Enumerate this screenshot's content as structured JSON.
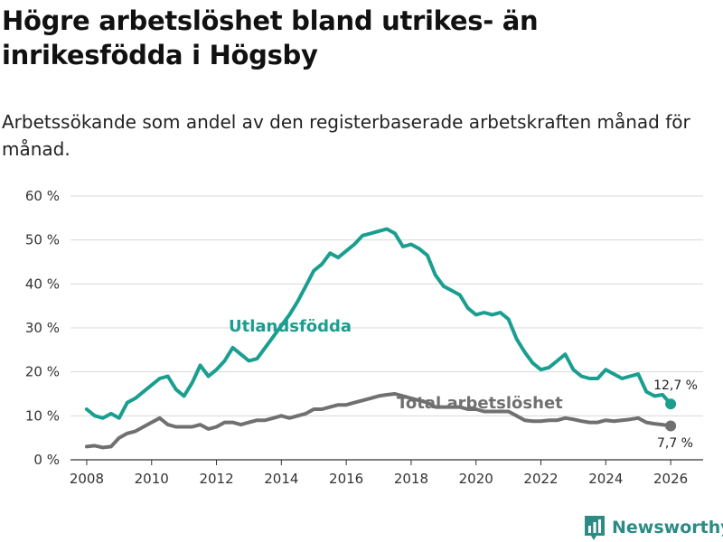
{
  "title": "Högre arbetslöshet bland utrikes- än inrikesfödda i Högsby",
  "subtitle": "Arbetssökande som andel av den registerbaserade arbetskraften månad för månad.",
  "brand": "Newsworthy",
  "colors": {
    "foreign": "#1a9e8f",
    "total": "#707070",
    "grid": "#d9d9d9",
    "axis": "#333333"
  },
  "chart_data": {
    "type": "line",
    "title": "Högre arbetslöshet bland utrikes- än inrikesfödda i Högsby",
    "subtitle": "Arbetssökande som andel av den registerbaserade arbetskraften månad för månad.",
    "xlabel": "",
    "ylabel": "",
    "xlim": [
      2007.5,
      2027.0
    ],
    "ylim": [
      0,
      60
    ],
    "grid": true,
    "xticks": [
      2008,
      2010,
      2012,
      2014,
      2016,
      2018,
      2020,
      2022,
      2024,
      2026
    ],
    "xtick_labels": [
      "2008",
      "2010",
      "2012",
      "2014",
      "2016",
      "2018",
      "2020",
      "2022",
      "2024",
      "2026"
    ],
    "yticks": [
      0,
      10,
      20,
      30,
      40,
      50,
      60
    ],
    "ytick_labels": [
      "0 %",
      "10 %",
      "20 %",
      "30 %",
      "40 %",
      "50 %",
      "60 %"
    ],
    "series": [
      {
        "name": "Utlandsfödda",
        "color": "#1a9e8f",
        "end_label": "12,7 %",
        "x": [
          2008.0,
          2008.25,
          2008.5,
          2008.75,
          2009.0,
          2009.25,
          2009.5,
          2009.75,
          2010.0,
          2010.25,
          2010.5,
          2010.75,
          2011.0,
          2011.25,
          2011.5,
          2011.75,
          2012.0,
          2012.25,
          2012.5,
          2012.75,
          2013.0,
          2013.25,
          2013.5,
          2013.75,
          2014.0,
          2014.25,
          2014.5,
          2014.75,
          2015.0,
          2015.25,
          2015.5,
          2015.75,
          2016.0,
          2016.25,
          2016.5,
          2016.75,
          2017.0,
          2017.25,
          2017.5,
          2017.75,
          2018.0,
          2018.25,
          2018.5,
          2018.75,
          2019.0,
          2019.25,
          2019.5,
          2019.75,
          2020.0,
          2020.25,
          2020.5,
          2020.75,
          2021.0,
          2021.25,
          2021.5,
          2021.75,
          2022.0,
          2022.25,
          2022.5,
          2022.75,
          2023.0,
          2023.25,
          2023.5,
          2023.75,
          2024.0,
          2024.25,
          2024.5,
          2024.75,
          2025.0,
          2025.25,
          2025.5,
          2025.75,
          2026.0
        ],
        "y": [
          11.5,
          10.0,
          9.5,
          10.5,
          9.5,
          13.0,
          14.0,
          15.5,
          17.0,
          18.5,
          19.0,
          16.0,
          14.5,
          17.5,
          21.5,
          19.0,
          20.5,
          22.5,
          25.5,
          24.0,
          22.5,
          23.0,
          25.5,
          28.0,
          30.5,
          33.0,
          36.0,
          39.5,
          43.0,
          44.5,
          47.0,
          46.0,
          47.5,
          49.0,
          51.0,
          51.5,
          52.0,
          52.5,
          51.5,
          48.5,
          49.0,
          48.0,
          46.5,
          42.0,
          39.5,
          38.5,
          37.5,
          34.5,
          33.0,
          33.5,
          33.0,
          33.5,
          32.0,
          27.5,
          24.5,
          22.0,
          20.5,
          21.0,
          22.5,
          24.0,
          20.5,
          19.0,
          18.5,
          18.5,
          20.5,
          19.5,
          18.5,
          19.0,
          19.5,
          15.5,
          14.5,
          14.8,
          12.7
        ]
      },
      {
        "name": "Total arbetslöshet",
        "color": "#707070",
        "end_label": "7,7 %",
        "x": [
          2008.0,
          2008.25,
          2008.5,
          2008.75,
          2009.0,
          2009.25,
          2009.5,
          2009.75,
          2010.0,
          2010.25,
          2010.5,
          2010.75,
          2011.0,
          2011.25,
          2011.5,
          2011.75,
          2012.0,
          2012.25,
          2012.5,
          2012.75,
          2013.0,
          2013.25,
          2013.5,
          2013.75,
          2014.0,
          2014.25,
          2014.5,
          2014.75,
          2015.0,
          2015.25,
          2015.5,
          2015.75,
          2016.0,
          2016.25,
          2016.5,
          2016.75,
          2017.0,
          2017.25,
          2017.5,
          2017.75,
          2018.0,
          2018.25,
          2018.5,
          2018.75,
          2019.0,
          2019.25,
          2019.5,
          2019.75,
          2020.0,
          2020.25,
          2020.5,
          2020.75,
          2021.0,
          2021.25,
          2021.5,
          2021.75,
          2022.0,
          2022.25,
          2022.5,
          2022.75,
          2023.0,
          2023.25,
          2023.5,
          2023.75,
          2024.0,
          2024.25,
          2024.5,
          2024.75,
          2025.0,
          2025.25,
          2025.5,
          2025.75,
          2026.0
        ],
        "y": [
          3.0,
          3.2,
          2.8,
          3.0,
          5.0,
          6.0,
          6.5,
          7.5,
          8.5,
          9.5,
          8.0,
          7.5,
          7.5,
          7.5,
          8.0,
          7.0,
          7.5,
          8.5,
          8.5,
          8.0,
          8.5,
          9.0,
          9.0,
          9.5,
          10.0,
          9.5,
          10.0,
          10.5,
          11.5,
          11.5,
          12.0,
          12.5,
          12.5,
          13.0,
          13.5,
          14.0,
          14.5,
          14.8,
          15.0,
          14.5,
          14.0,
          13.5,
          13.0,
          12.0,
          12.0,
          12.0,
          12.0,
          11.5,
          11.5,
          11.0,
          11.0,
          11.0,
          11.0,
          10.0,
          9.0,
          8.8,
          8.8,
          9.0,
          9.0,
          9.5,
          9.2,
          8.8,
          8.5,
          8.5,
          9.0,
          8.8,
          9.0,
          9.2,
          9.5,
          8.5,
          8.2,
          8.0,
          7.7
        ]
      }
    ]
  }
}
